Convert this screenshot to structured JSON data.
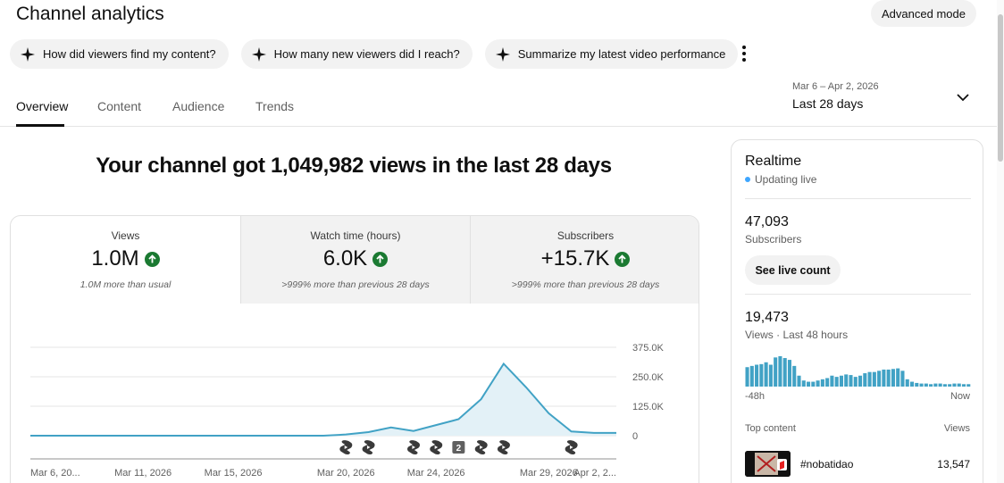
{
  "header": {
    "title": "Channel analytics",
    "advanced_mode_label": "Advanced mode"
  },
  "suggestions": [
    {
      "label": "How did viewers find my content?"
    },
    {
      "label": "How many new viewers did I reach?"
    },
    {
      "label": "Summarize my latest video performance"
    }
  ],
  "tabs": [
    {
      "label": "Overview",
      "active": true
    },
    {
      "label": "Content",
      "active": false
    },
    {
      "label": "Audience",
      "active": false
    },
    {
      "label": "Trends",
      "active": false
    }
  ],
  "date_range": {
    "range": "Mar 6 – Apr 2, 2026",
    "label": "Last 28 days"
  },
  "headline": "Your channel got 1,049,982 views in the last 28 days",
  "metrics": [
    {
      "label": "Views",
      "value": "1.0M",
      "sub": "1.0M more than usual"
    },
    {
      "label": "Watch time (hours)",
      "value": "6.0K",
      "sub": ">999% more than previous 28 days"
    },
    {
      "label": "Subscribers",
      "value": "+15.7K",
      "sub": ">999% more than previous 28 days"
    }
  ],
  "chart_data": {
    "type": "area",
    "x_tick_labels": [
      "Mar 6, 20...",
      "Mar 11, 2026",
      "Mar 15, 2026",
      "Mar 20, 2026",
      "Mar 24, 2026",
      "Mar 29, 2026",
      "Apr 2, 2..."
    ],
    "y_tick_labels": [
      "375.0K",
      "250.0K",
      "125.0K",
      "0"
    ],
    "ylim": [
      0,
      375000
    ],
    "series": [
      {
        "values": [
          0,
          0,
          0,
          0,
          0,
          0,
          0,
          0,
          0,
          0,
          0,
          0,
          0,
          0,
          5000,
          15000,
          35000,
          20000,
          45000,
          70000,
          155000,
          305000,
          205000,
          95000,
          18000,
          12000,
          12000
        ]
      }
    ],
    "markers": [
      {
        "day": 14,
        "label": ""
      },
      {
        "day": 15,
        "label": ""
      },
      {
        "day": 17,
        "label": ""
      },
      {
        "day": 18,
        "label": ""
      },
      {
        "day": 19,
        "label": "2"
      },
      {
        "day": 20,
        "label": ""
      },
      {
        "day": 21,
        "label": ""
      },
      {
        "day": 24,
        "label": ""
      }
    ],
    "grid": true,
    "colors": {
      "line": "#41a2c5",
      "fill": "#e3f1f7"
    }
  },
  "realtime": {
    "title": "Realtime",
    "status": "Updating live",
    "subscribers_value": "47,093",
    "subscribers_label": "Subscribers",
    "live_count_label": "See live count",
    "views_value": "19,473",
    "views_label": "Views · Last 48 hours",
    "axis_start": "-48h",
    "axis_end": "Now",
    "hourly_views": [
      32,
      34,
      36,
      37,
      40,
      36,
      48,
      50,
      47,
      44,
      34,
      18,
      10,
      8,
      8,
      10,
      12,
      14,
      18,
      16,
      18,
      20,
      19,
      16,
      18,
      22,
      24,
      24,
      26,
      28,
      28,
      29,
      30,
      26,
      12,
      8,
      6,
      5,
      5,
      4,
      5,
      5,
      4,
      4,
      5,
      5,
      4,
      4
    ],
    "top_content_label": "Top content",
    "top_views_label": "Views",
    "top_items": [
      {
        "title": "#nobatidao",
        "views": "13,547"
      }
    ]
  }
}
